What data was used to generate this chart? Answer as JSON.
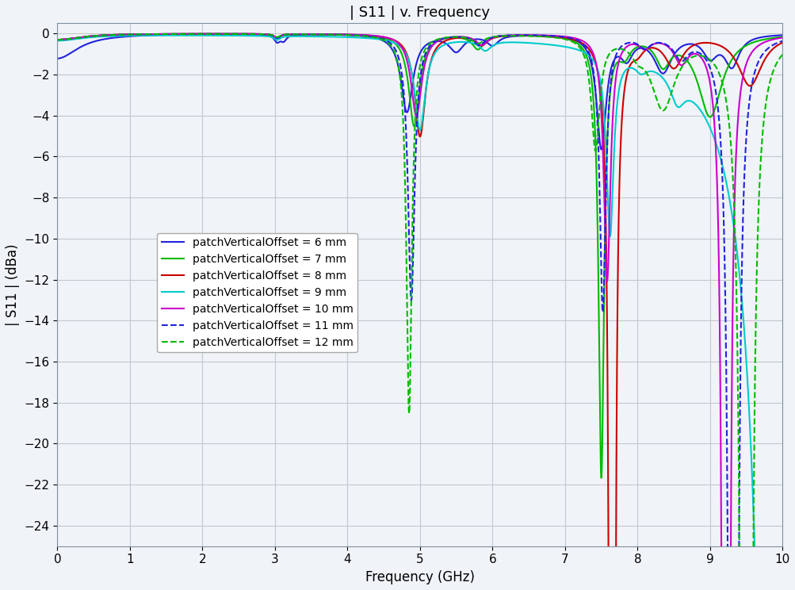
{
  "title": "| S11 | v. Frequency",
  "xlabel": "Frequency (GHz)",
  "ylabel": "| S11 | (dBa)",
  "xlim": [
    0,
    10
  ],
  "ylim": [
    -25,
    0.5
  ],
  "yticks": [
    0,
    -2,
    -4,
    -6,
    -8,
    -10,
    -12,
    -14,
    -16,
    -18,
    -20,
    -22,
    -24
  ],
  "xticks": [
    0,
    1,
    2,
    3,
    4,
    5,
    6,
    7,
    8,
    9,
    10
  ],
  "grid_color": "#c0c8d0",
  "bg_color": "#f0f4f8",
  "legend_entries": [
    {
      "label": "patchVerticalOffset = 6 mm",
      "color": "#2222dd",
      "linestyle": "-",
      "linewidth": 1.5
    },
    {
      "label": "patchVerticalOffset = 7 mm",
      "color": "#00bb00",
      "linestyle": "-",
      "linewidth": 1.5
    },
    {
      "label": "patchVerticalOffset = 8 mm",
      "color": "#cc0000",
      "linestyle": "-",
      "linewidth": 1.5
    },
    {
      "label": "patchVerticalOffset = 9 mm",
      "color": "#00cccc",
      "linestyle": "-",
      "linewidth": 1.5
    },
    {
      "label": "patchVerticalOffset = 10 mm",
      "color": "#cc00cc",
      "linestyle": "-",
      "linewidth": 1.5
    },
    {
      "label": "patchVerticalOffset = 11 mm",
      "color": "#2222dd",
      "linestyle": "--",
      "linewidth": 1.5
    },
    {
      "label": "patchVerticalOffset = 12 mm",
      "color": "#00bb00",
      "linestyle": "--",
      "linewidth": 1.5
    }
  ],
  "title_fontsize": 13,
  "label_fontsize": 12,
  "tick_fontsize": 11,
  "legend_fontsize": 10
}
